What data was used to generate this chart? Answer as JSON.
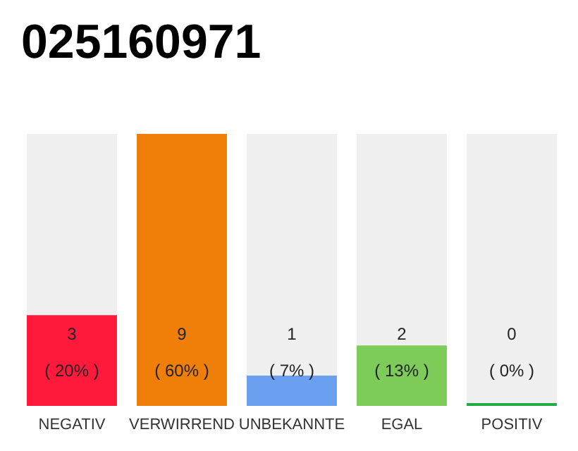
{
  "chart_data": {
    "type": "bar",
    "title": "025160971",
    "categories": [
      "NEGATIV",
      "VERWIRREND",
      "UNBEKANNTE",
      "EGAL",
      "POSITIV"
    ],
    "values": [
      3,
      9,
      1,
      2,
      0
    ],
    "colors": [
      "#ff1a3c",
      "#f07f0a",
      "#6b9ff0",
      "#7dcc5a",
      "#22aa44"
    ],
    "value_labels": [
      "3\n( 20% )",
      "9\n( 60% )",
      "1\n( 7% )",
      "2\n( 13% )",
      "0\n( 0% )"
    ]
  }
}
